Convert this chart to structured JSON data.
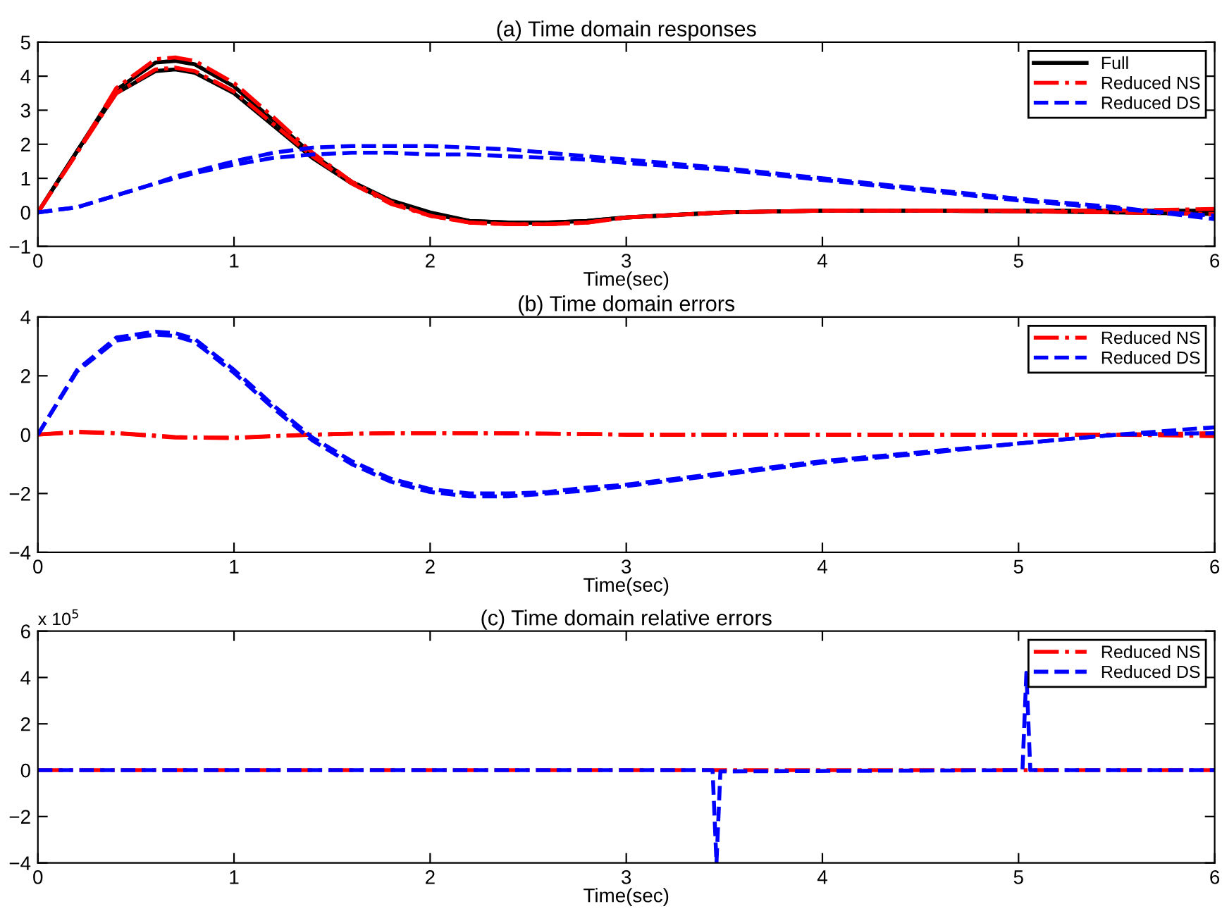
{
  "chart_data": [
    {
      "type": "line",
      "title": "(a) Time domain responses",
      "xlabel": "Time(sec)",
      "xlim": [
        0,
        6
      ],
      "ylim": [
        -1,
        5
      ],
      "xticks": [
        0,
        1,
        2,
        3,
        4,
        5,
        6
      ],
      "yticks": [
        -1,
        0,
        1,
        2,
        3,
        4,
        5
      ],
      "grid": false,
      "legend": "top right",
      "x": [
        0,
        0.2,
        0.4,
        0.6,
        0.7,
        0.8,
        1.0,
        1.2,
        1.4,
        1.6,
        1.8,
        2.0,
        2.2,
        2.4,
        2.6,
        2.8,
        3.0,
        3.5,
        4.0,
        4.5,
        5.0,
        5.5,
        6.0
      ],
      "series": [
        {
          "name": "Full",
          "color": "#000000",
          "line_style": "solid",
          "values": [
            0,
            1.8,
            3.6,
            4.4,
            4.45,
            4.35,
            3.7,
            2.7,
            1.7,
            0.9,
            0.35,
            0.0,
            -0.25,
            -0.3,
            -0.3,
            -0.25,
            -0.15,
            0.0,
            0.05,
            0.05,
            0.05,
            0.05,
            0.05
          ]
        },
        {
          "color": "#000000",
          "line_style": "solid",
          "values": [
            0,
            1.8,
            3.5,
            4.15,
            4.2,
            4.1,
            3.5,
            2.55,
            1.6,
            0.85,
            0.3,
            -0.05,
            -0.25,
            -0.3,
            -0.3,
            -0.25,
            -0.15,
            0.0,
            0.05,
            0.05,
            0.03,
            0.0,
            -0.05
          ]
        },
        {
          "name": "Reduced NS",
          "color": "#ff0000",
          "line_style": "dashdot",
          "values": [
            0,
            1.75,
            3.65,
            4.5,
            4.55,
            4.45,
            3.8,
            2.8,
            1.75,
            0.9,
            0.3,
            -0.1,
            -0.3,
            -0.35,
            -0.35,
            -0.3,
            -0.15,
            0.0,
            0.05,
            0.05,
            0.05,
            0.05,
            0.1
          ]
        },
        {
          "color": "#ff0000",
          "line_style": "dashdot",
          "values": [
            0,
            1.75,
            3.5,
            4.2,
            4.25,
            4.15,
            3.55,
            2.6,
            1.65,
            0.85,
            0.25,
            -0.1,
            -0.3,
            -0.35,
            -0.35,
            -0.3,
            -0.15,
            0.0,
            0.05,
            0.05,
            0.03,
            0.0,
            -0.05
          ]
        },
        {
          "name": "Reduced DS",
          "color": "#0000ff",
          "line_style": "dashed",
          "values": [
            0,
            0.15,
            0.5,
            0.85,
            1.05,
            1.2,
            1.5,
            1.75,
            1.9,
            1.95,
            1.95,
            1.95,
            1.9,
            1.85,
            1.75,
            1.65,
            1.55,
            1.3,
            1.0,
            0.7,
            0.4,
            0.15,
            -0.2
          ]
        },
        {
          "color": "#0000ff",
          "line_style": "dashed",
          "values": [
            0,
            0.15,
            0.5,
            0.85,
            1.0,
            1.15,
            1.4,
            1.6,
            1.7,
            1.75,
            1.75,
            1.7,
            1.7,
            1.65,
            1.6,
            1.55,
            1.45,
            1.25,
            0.95,
            0.65,
            0.35,
            0.1,
            -0.1
          ]
        }
      ]
    },
    {
      "type": "line",
      "title": "(b) Time domain errors",
      "xlabel": "Time(sec)",
      "xlim": [
        0,
        6
      ],
      "ylim": [
        -4,
        4
      ],
      "xticks": [
        0,
        1,
        2,
        3,
        4,
        5,
        6
      ],
      "yticks": [
        -4,
        -2,
        0,
        2,
        4
      ],
      "grid": false,
      "legend": "top right",
      "x": [
        0,
        0.2,
        0.4,
        0.6,
        0.7,
        0.8,
        1.0,
        1.2,
        1.4,
        1.6,
        1.8,
        2.0,
        2.2,
        2.4,
        2.6,
        2.8,
        3.0,
        3.5,
        4.0,
        4.5,
        5.0,
        5.5,
        6.0
      ],
      "series": [
        {
          "name": "Reduced NS",
          "color": "#ff0000",
          "line_style": "dashdot",
          "values": [
            0,
            0.1,
            0.05,
            -0.05,
            -0.1,
            -0.1,
            -0.1,
            -0.05,
            0,
            0.03,
            0.05,
            0.05,
            0.05,
            0.05,
            0.03,
            0.02,
            0,
            0,
            0,
            0,
            0,
            0,
            0.05
          ]
        },
        {
          "color": "#ff0000",
          "line_style": "dashdot",
          "values": [
            0,
            0.08,
            0.05,
            -0.03,
            -0.08,
            -0.1,
            -0.12,
            -0.05,
            0,
            0.03,
            0.05,
            0.05,
            0.05,
            0.04,
            0.03,
            0.02,
            0,
            0,
            0,
            0,
            0,
            0,
            -0.05
          ]
        },
        {
          "name": "Reduced DS",
          "color": "#0000ff",
          "line_style": "dashed",
          "values": [
            0,
            2.2,
            3.3,
            3.5,
            3.45,
            3.25,
            2.2,
            1.0,
            -0.1,
            -0.9,
            -1.5,
            -1.85,
            -2.0,
            -2.0,
            -1.95,
            -1.8,
            -1.7,
            -1.3,
            -0.9,
            -0.6,
            -0.3,
            0.0,
            0.25
          ]
        },
        {
          "color": "#0000ff",
          "line_style": "dashed",
          "values": [
            0,
            2.15,
            3.2,
            3.4,
            3.35,
            3.15,
            2.1,
            0.9,
            -0.2,
            -1.0,
            -1.6,
            -1.95,
            -2.1,
            -2.1,
            -2.0,
            -1.9,
            -1.75,
            -1.35,
            -0.95,
            -0.65,
            -0.3,
            0.0,
            0.05
          ]
        }
      ]
    },
    {
      "type": "line",
      "title": "(c) Time domain relative errors",
      "xlabel": "Time(sec)",
      "xlim": [
        0,
        6
      ],
      "ylim": [
        -4,
        6
      ],
      "xticks": [
        0,
        1,
        2,
        3,
        4,
        5,
        6
      ],
      "yticks": [
        -4,
        -2,
        0,
        2,
        4,
        6
      ],
      "annotations": [
        "x 10$^{5}$"
      ],
      "grid": false,
      "legend": "top right",
      "series": [
        {
          "name": "Reduced NS",
          "color": "#ff0000",
          "line_style": "dashdot",
          "x": [
            0,
            6
          ],
          "values": [
            0,
            0
          ]
        },
        {
          "name": "Reduced DS",
          "color": "#0000ff",
          "line_style": "dashed",
          "x": [
            0,
            3.44,
            3.46,
            3.48,
            5.02,
            5.04,
            5.06,
            6
          ],
          "values": [
            0,
            0,
            -4,
            -0.05,
            0,
            4.2,
            0,
            0
          ]
        }
      ]
    }
  ]
}
